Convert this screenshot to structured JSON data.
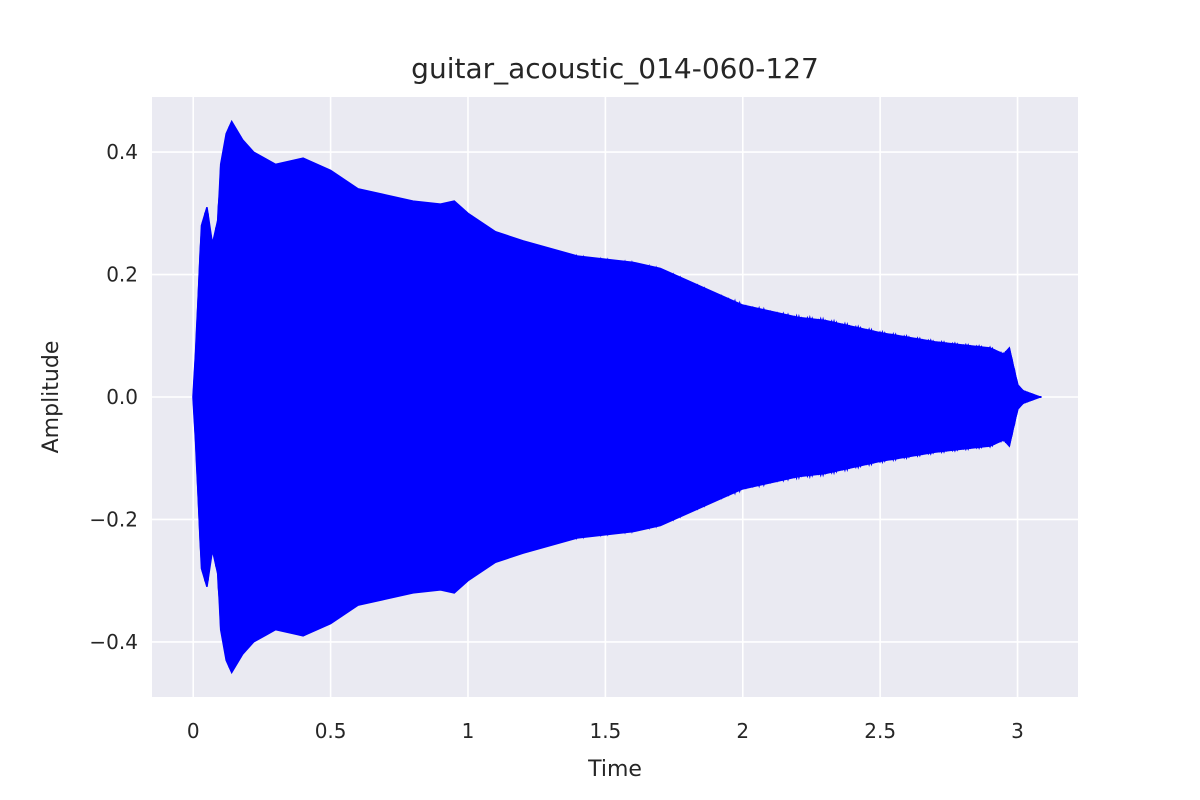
{
  "chart_data": {
    "type": "line",
    "title": "guitar_acoustic_014-060-127",
    "xlabel": "Time",
    "ylabel": "Amplitude",
    "xlim": [
      -0.15,
      3.22
    ],
    "ylim": [
      -0.49,
      0.49
    ],
    "x_ticks": [
      0,
      0.5,
      1,
      1.5,
      2,
      2.5,
      3
    ],
    "x_tick_labels": [
      "0",
      "0.5",
      "1",
      "1.5",
      "2",
      "2.5",
      "3"
    ],
    "y_ticks": [
      0.4,
      0.2,
      0.0,
      -0.2,
      -0.4
    ],
    "y_tick_labels": [
      "0.4",
      "0.2",
      "0.0",
      "−0.2",
      "−0.4"
    ],
    "grid": true,
    "background": "#eaeaf2",
    "series": [
      {
        "color": "#0000ff",
        "envelope_x": [
          0.0,
          0.01,
          0.03,
          0.05,
          0.07,
          0.09,
          0.1,
          0.12,
          0.14,
          0.18,
          0.22,
          0.3,
          0.4,
          0.5,
          0.6,
          0.7,
          0.8,
          0.9,
          0.95,
          1.0,
          1.1,
          1.2,
          1.4,
          1.6,
          1.7,
          1.8,
          1.9,
          2.0,
          2.1,
          2.2,
          2.3,
          2.5,
          2.7,
          2.8,
          2.9,
          2.95,
          2.97,
          2.98,
          3.0,
          3.02,
          3.05,
          3.08
        ],
        "envelope_upper": [
          0.0,
          0.08,
          0.28,
          0.31,
          0.25,
          0.29,
          0.38,
          0.43,
          0.45,
          0.42,
          0.4,
          0.38,
          0.39,
          0.37,
          0.34,
          0.33,
          0.32,
          0.315,
          0.32,
          0.3,
          0.27,
          0.255,
          0.23,
          0.22,
          0.21,
          0.19,
          0.17,
          0.15,
          0.14,
          0.13,
          0.125,
          0.105,
          0.09,
          0.085,
          0.08,
          0.07,
          0.08,
          0.06,
          0.02,
          0.01,
          0.005,
          0.0
        ],
        "envelope_lower": [
          0.0,
          -0.08,
          -0.28,
          -0.31,
          -0.25,
          -0.29,
          -0.38,
          -0.43,
          -0.45,
          -0.42,
          -0.4,
          -0.38,
          -0.39,
          -0.37,
          -0.34,
          -0.33,
          -0.32,
          -0.315,
          -0.32,
          -0.3,
          -0.27,
          -0.255,
          -0.23,
          -0.22,
          -0.21,
          -0.19,
          -0.17,
          -0.15,
          -0.14,
          -0.13,
          -0.125,
          -0.105,
          -0.09,
          -0.085,
          -0.08,
          -0.07,
          -0.08,
          -0.06,
          -0.02,
          -0.01,
          -0.005,
          0.0
        ]
      }
    ]
  }
}
